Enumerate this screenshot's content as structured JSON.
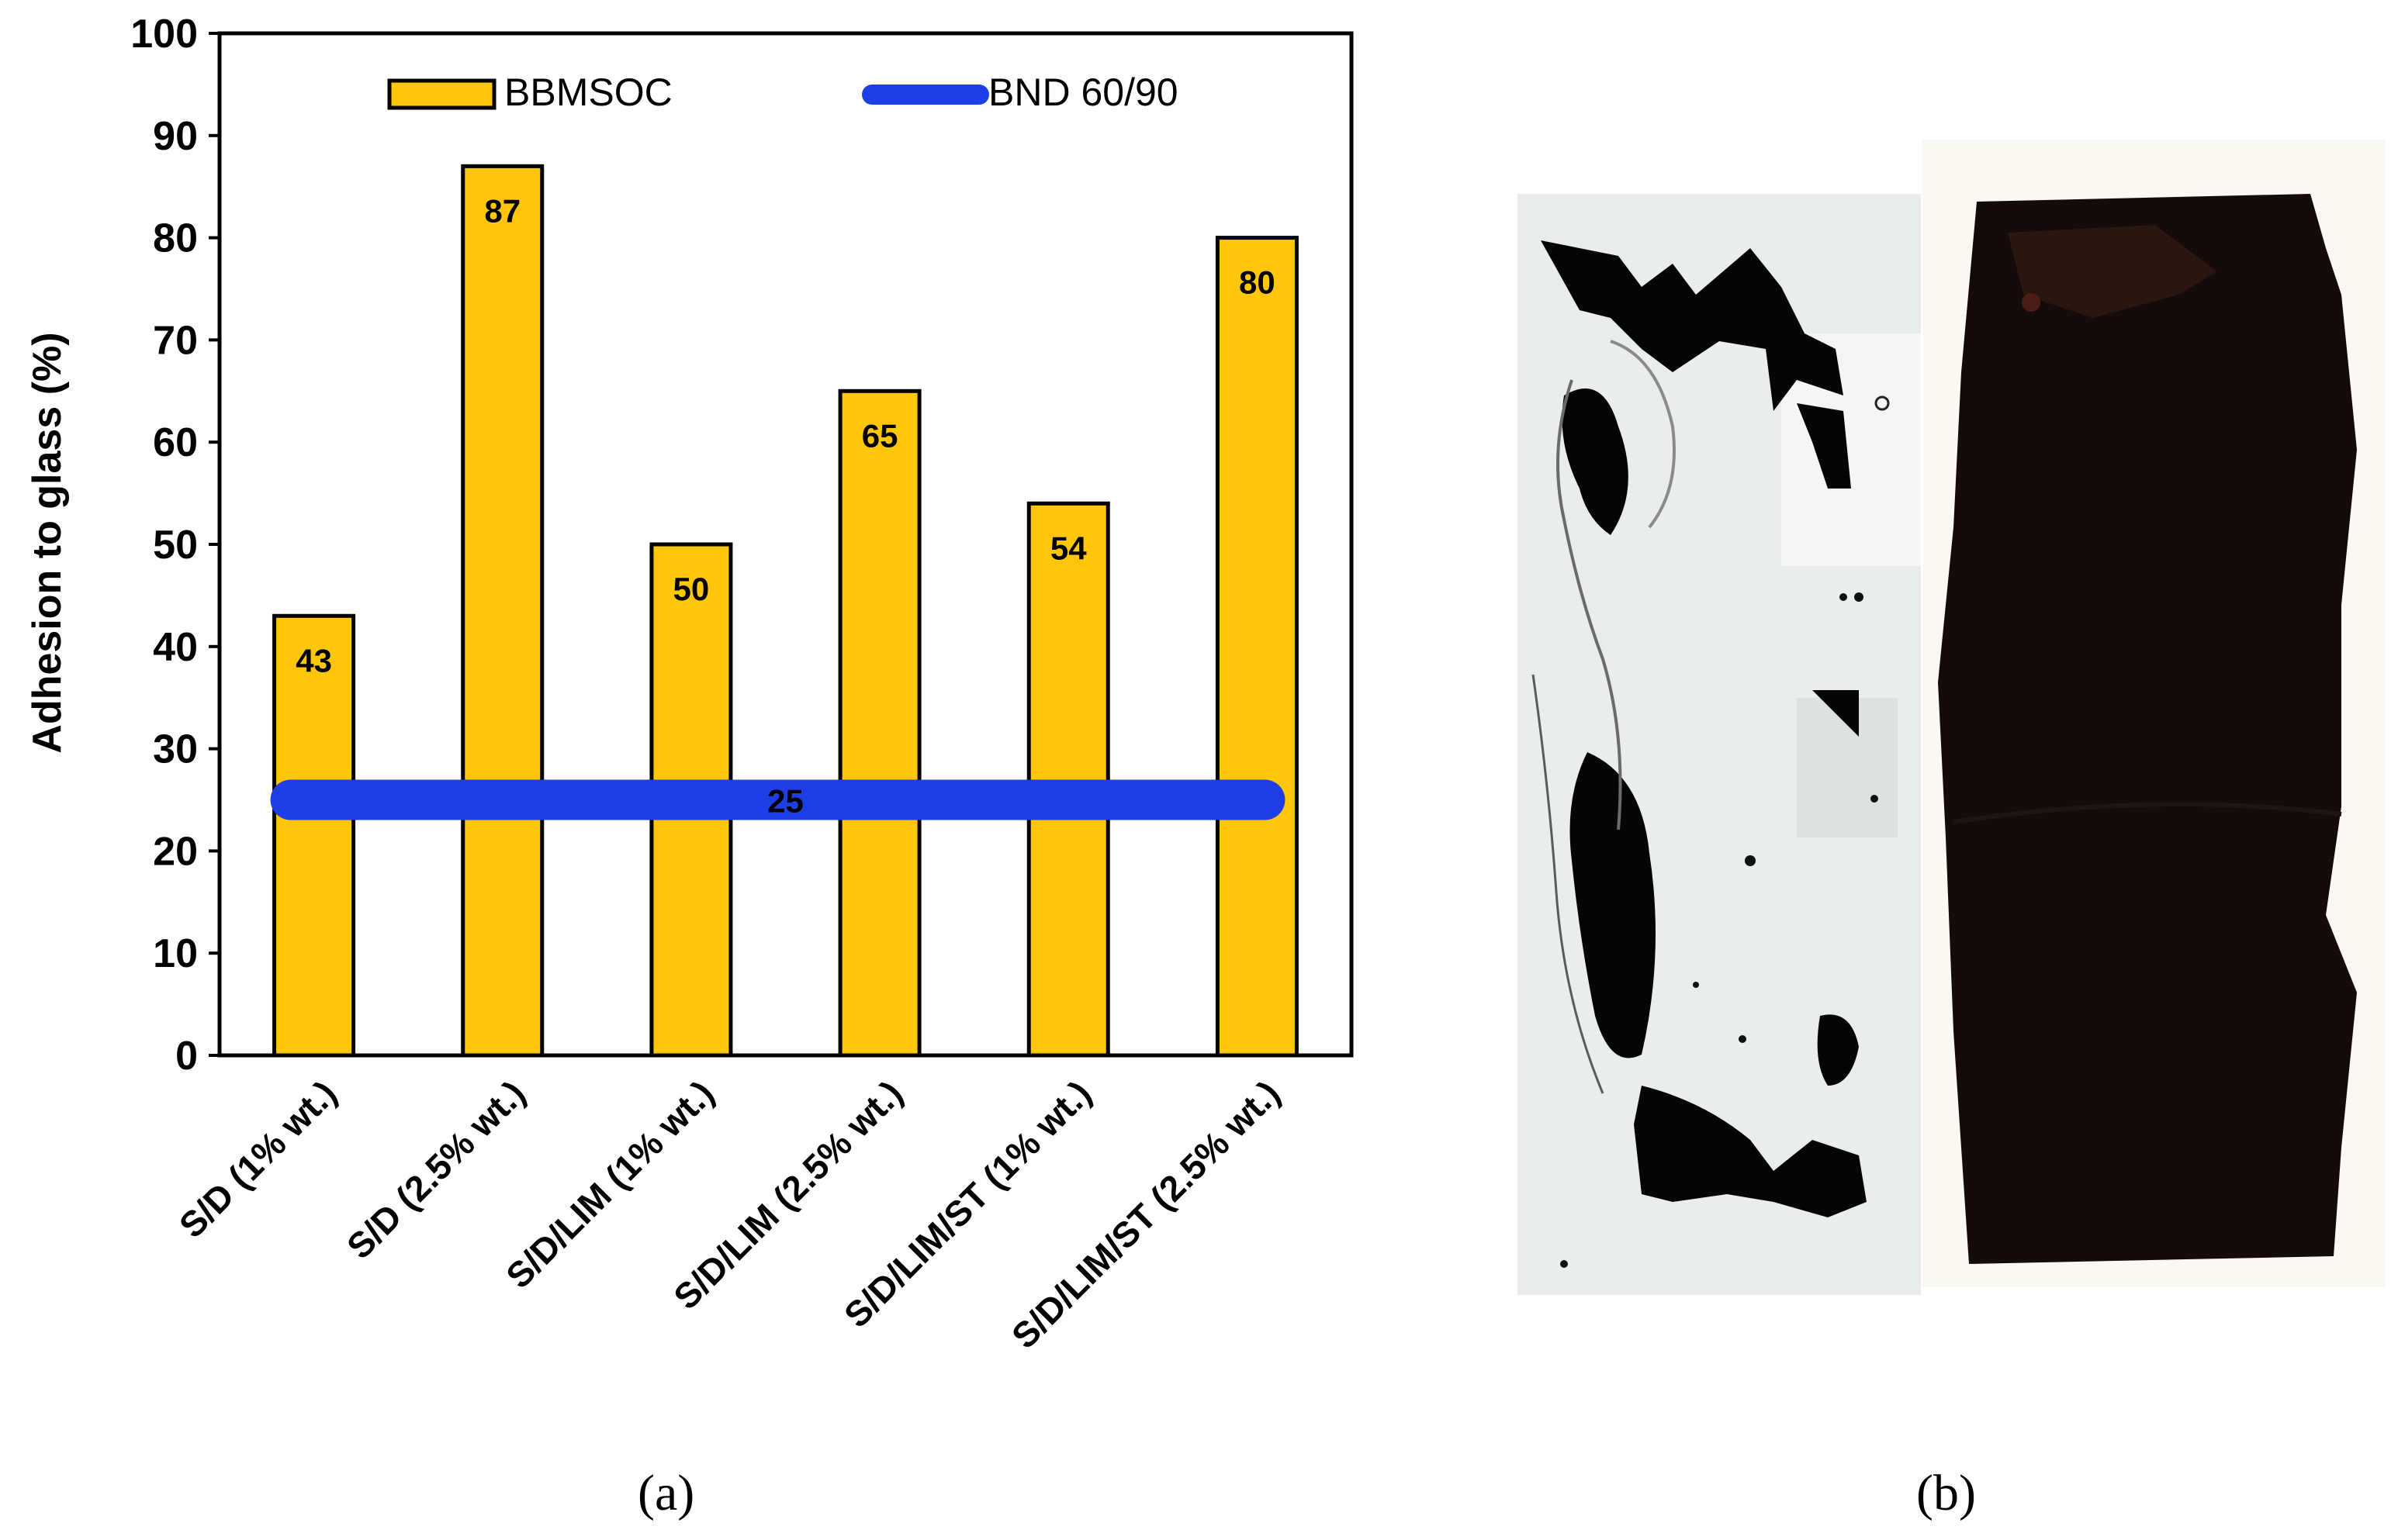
{
  "chart_data": {
    "type": "bar",
    "categories": [
      "S/D (1% wt.)",
      "S/D (2.5% wt.)",
      "S/D/LIM (1% wt.)",
      "S/D/LIM (2.5% wt.)",
      "S/D/LIM/ST (1% wt.)",
      "S/D/LIM/ST (2.5% wt.)"
    ],
    "series": [
      {
        "name": "BBMSOC",
        "values": [
          43,
          87,
          50,
          65,
          54,
          80
        ],
        "color": "#FFC60A"
      }
    ],
    "reference_line": {
      "name": "BND 60/90",
      "value": 25,
      "label": "25",
      "color": "#1F3FE6"
    },
    "data_labels": [
      "43",
      "87",
      "50",
      "65",
      "54",
      "80"
    ],
    "ylabel": "Adhesion to glass (%)",
    "xlabel": "",
    "ylim": [
      0,
      100
    ],
    "yticks": [
      0,
      10,
      20,
      30,
      40,
      50,
      60,
      70,
      80,
      90,
      100
    ],
    "grid": false,
    "legend_position": "top"
  },
  "panels": {
    "a": "(a)",
    "b": "(b)"
  },
  "photos": {
    "left_icon": "adhesion-test-glass-plate-photo",
    "right_icon": "bitumen-coated-glass-plate-photo"
  }
}
